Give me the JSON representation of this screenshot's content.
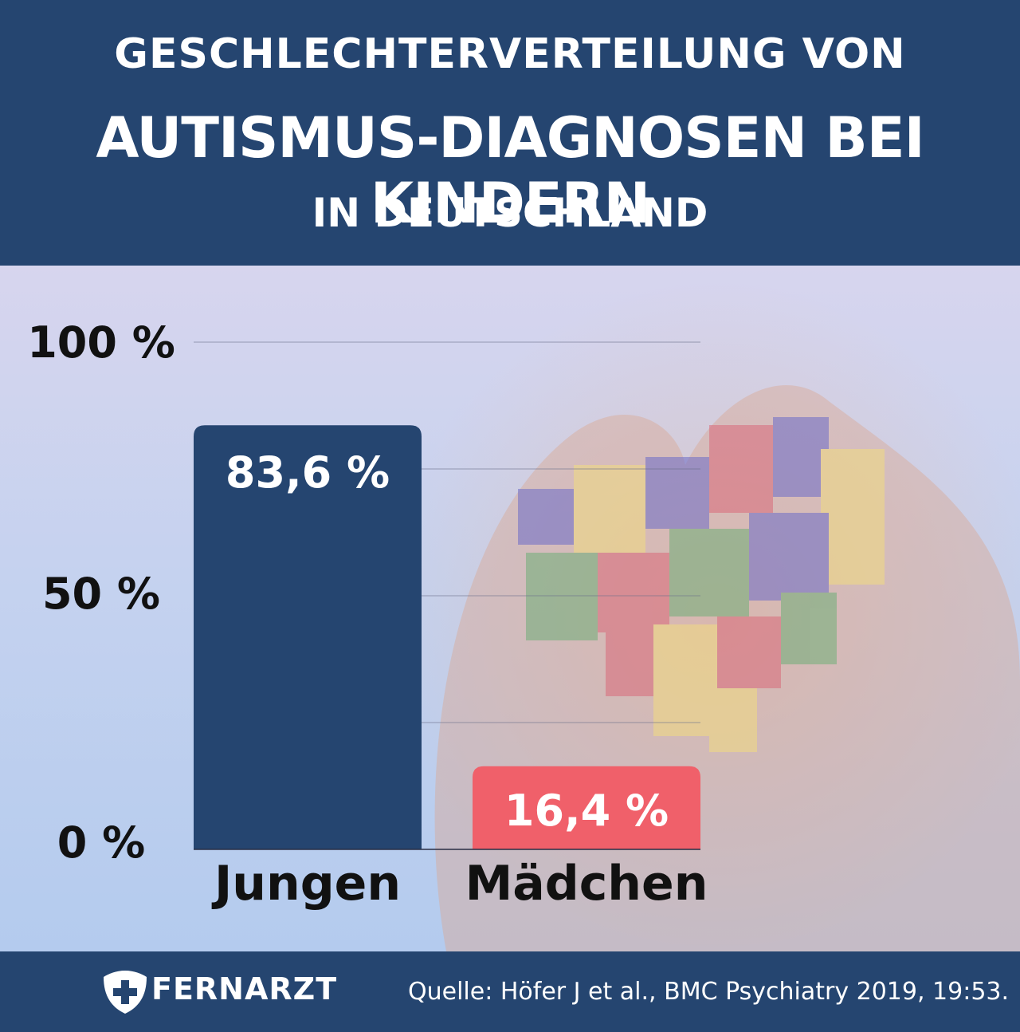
{
  "header": {
    "line1": "GESCHLECHTERVERTEILUNG VON",
    "line2": "AUTISMUS-DIAGNOSEN BEI KINDERN",
    "line3": "IN DEUTSCHLAND"
  },
  "chart_data": {
    "type": "bar",
    "categories": [
      "Jungen",
      "Mädchen"
    ],
    "values": [
      83.6,
      16.4
    ],
    "value_labels": [
      "83,6 %",
      "16,4 %"
    ],
    "bar_colors": [
      "#254570",
      "#f0606a"
    ],
    "ylim": [
      0,
      100
    ],
    "yticks": [
      0,
      50,
      100
    ],
    "ytick_labels": [
      "0 %",
      "50 %",
      "100 %"
    ],
    "grid": true,
    "xlabel": "",
    "ylabel": ""
  },
  "footer": {
    "brand": "FERNARZT",
    "source": "Quelle: Höfer J et al., BMC Psychiatry 2019, 19:53."
  },
  "colors": {
    "header_bg": "#254570",
    "footer_bg": "#254570",
    "boys": "#254570",
    "girls": "#f0606a"
  }
}
